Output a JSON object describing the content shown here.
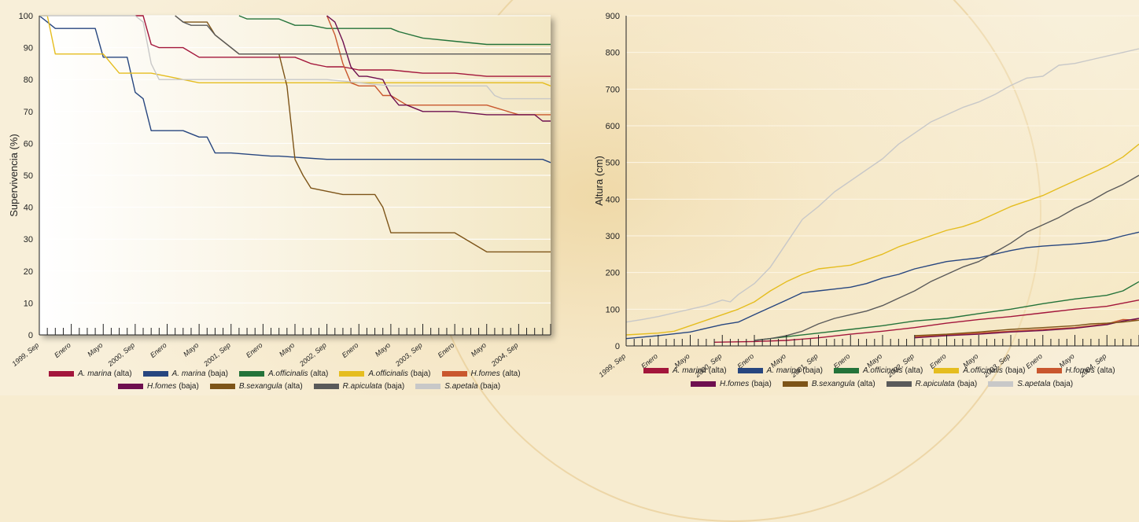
{
  "colors": {
    "A. marina (alta)": "#a3163b",
    "A. marina (baja)": "#27467f",
    "A.officinalis (alta)": "#24733a",
    "A.officinalis (baja)": "#e5bd1f",
    "H.fomes (alta)": "#c9572e",
    "H.fomes (baja)": "#6e0f4f",
    "B.sexangula (alta)": "#7d5418",
    "R.apiculata (baja)": "#5a5a5a",
    "S.apetala (baja)": "#c8c8c8"
  },
  "legend": [
    {
      "name": "A. marina",
      "qual": "(alta)",
      "key": "A. marina (alta)"
    },
    {
      "name": "A. marina",
      "qual": "(baja)",
      "key": "A. marina (baja)"
    },
    {
      "name": "A.officinalis",
      "qual": "(alta)",
      "key": "A.officinalis (alta)"
    },
    {
      "name": "A.officinalis",
      "qual": "(baja)",
      "key": "A.officinalis (baja)"
    },
    {
      "name": "H.fomes",
      "qual": "(alta)",
      "key": "H.fomes (alta)"
    },
    {
      "name": "H.fomes",
      "qual": "(baja)",
      "key": "H.fomes (baja)"
    },
    {
      "name": "B.sexangula",
      "qual": "(alta)",
      "key": "B.sexangula (alta)"
    },
    {
      "name": "R.apiculata",
      "qual": "(baja)",
      "key": "R.apiculata (baja)"
    },
    {
      "name": "S.apetala",
      "qual": "(baja)",
      "key": "S.apetala (baja)"
    }
  ],
  "chart_data": [
    {
      "type": "line",
      "ylabel": "Supervivencia (%)",
      "ylim": [
        0,
        100
      ],
      "yticks": [
        0,
        10,
        20,
        30,
        40,
        50,
        60,
        70,
        80,
        90,
        100
      ],
      "xlim": [
        0,
        64
      ],
      "xticks": [
        {
          "x": 0,
          "label": "1999, Sep"
        },
        {
          "x": 4,
          "label": "Enero"
        },
        {
          "x": 8,
          "label": "Mayo"
        },
        {
          "x": 12,
          "label": "2000, Sep"
        },
        {
          "x": 16,
          "label": "Enero"
        },
        {
          "x": 20,
          "label": "Mayo"
        },
        {
          "x": 24,
          "label": "2001, Sep"
        },
        {
          "x": 28,
          "label": "Enero"
        },
        {
          "x": 32,
          "label": "Mayo"
        },
        {
          "x": 36,
          "label": "2002, Sep"
        },
        {
          "x": 40,
          "label": "Enero"
        },
        {
          "x": 44,
          "label": "Mayo"
        },
        {
          "x": 48,
          "label": "2003, Sep"
        },
        {
          "x": 52,
          "label": "Enero"
        },
        {
          "x": 56,
          "label": "Mayo"
        },
        {
          "x": 60,
          "label": "2004, Sep"
        }
      ],
      "grid": true,
      "legend_position": "bottom",
      "series": [
        {
          "name": "A. marina (alta)",
          "x": [
            12,
            13,
            14,
            15,
            18,
            20,
            32,
            33,
            34,
            36,
            38,
            40,
            44,
            48,
            52,
            56,
            64
          ],
          "y": [
            100,
            100,
            91,
            90,
            90,
            87,
            87,
            86,
            85,
            84,
            84,
            83,
            83,
            82,
            82,
            81,
            81
          ]
        },
        {
          "name": "A. marina (baja)",
          "x": [
            0,
            1,
            2,
            4,
            7,
            8,
            11,
            12,
            13,
            14,
            18,
            20,
            21,
            22,
            24,
            29,
            30,
            36,
            42,
            48,
            54,
            60,
            63,
            64
          ],
          "y": [
            100,
            98,
            96,
            96,
            96,
            87,
            87,
            76,
            74,
            64,
            64,
            62,
            62,
            57,
            57,
            56,
            56,
            55,
            55,
            55,
            55,
            55,
            55,
            54
          ]
        },
        {
          "name": "A.officinalis (alta)",
          "x": [
            25,
            26,
            30,
            32,
            34,
            36,
            40,
            44,
            45,
            48,
            52,
            56,
            60,
            64
          ],
          "y": [
            100,
            99,
            99,
            97,
            97,
            96,
            96,
            96,
            95,
            93,
            92,
            91,
            91,
            91
          ]
        },
        {
          "name": "A.officinalis (baja)",
          "x": [
            0,
            1,
            2,
            8,
            9,
            10,
            14,
            16,
            18,
            20,
            36,
            44,
            52,
            56,
            60,
            63,
            64
          ],
          "y": [
            100,
            100,
            88,
            88,
            85,
            82,
            82,
            81,
            80,
            79,
            79,
            79,
            79,
            79,
            79,
            79,
            78
          ]
        },
        {
          "name": "H.fomes (alta)",
          "x": [
            36,
            37,
            38,
            39,
            40,
            42,
            43,
            44,
            46,
            48,
            52,
            56,
            60,
            64
          ],
          "y": [
            100,
            94,
            85,
            79,
            78,
            78,
            75,
            75,
            72,
            72,
            72,
            72,
            69,
            69
          ]
        },
        {
          "name": "H.fomes (baja)",
          "x": [
            36,
            37,
            38,
            39,
            40,
            41,
            43,
            44,
            45,
            46,
            48,
            52,
            56,
            62,
            63,
            64
          ],
          "y": [
            100,
            98,
            92,
            84,
            81,
            81,
            80,
            75,
            72,
            72,
            70,
            70,
            69,
            69,
            67,
            67
          ]
        },
        {
          "name": "B.sexangula (alta)",
          "x": [
            17,
            18,
            21,
            22,
            25,
            30,
            31,
            32,
            33,
            34,
            36,
            38,
            42,
            43,
            44,
            48,
            52,
            56,
            64
          ],
          "y": [
            100,
            98,
            98,
            94,
            88,
            88,
            78,
            55,
            50,
            46,
            45,
            44,
            44,
            40,
            32,
            32,
            32,
            26,
            26
          ]
        },
        {
          "name": "R.apiculata (baja)",
          "x": [
            17,
            18,
            19,
            21,
            22,
            24,
            25,
            30,
            36,
            44,
            52,
            56,
            64
          ],
          "y": [
            100,
            98,
            97,
            97,
            94,
            90,
            88,
            88,
            88,
            88,
            88,
            88,
            88
          ]
        },
        {
          "name": "S.apetala (baja)",
          "x": [
            0,
            12,
            13,
            14,
            15,
            20,
            28,
            36,
            44,
            52,
            56,
            57,
            58,
            64
          ],
          "y": [
            100,
            100,
            98,
            85,
            80,
            80,
            80,
            80,
            78,
            78,
            78,
            75,
            74,
            74
          ]
        }
      ]
    },
    {
      "type": "line",
      "ylabel": "Altura (cm)",
      "ylim": [
        0,
        900
      ],
      "yticks": [
        0,
        100,
        200,
        300,
        400,
        500,
        600,
        700,
        800,
        900
      ],
      "xlim": [
        0,
        64
      ],
      "xticks": [
        {
          "x": 0,
          "label": "1999, Sep"
        },
        {
          "x": 4,
          "label": "Enero"
        },
        {
          "x": 8,
          "label": "Mayo"
        },
        {
          "x": 12,
          "label": "2000, Sep"
        },
        {
          "x": 16,
          "label": "Enero"
        },
        {
          "x": 20,
          "label": "Mayo"
        },
        {
          "x": 24,
          "label": "2001, Sep"
        },
        {
          "x": 28,
          "label": "Enero"
        },
        {
          "x": 32,
          "label": "Mayo"
        },
        {
          "x": 36,
          "label": "2002, Sep"
        },
        {
          "x": 40,
          "label": "Enero"
        },
        {
          "x": 44,
          "label": "Mayo"
        },
        {
          "x": 48,
          "label": "2003, Sep"
        },
        {
          "x": 52,
          "label": "Enero"
        },
        {
          "x": 56,
          "label": "Mayo"
        },
        {
          "x": 60,
          "label": "2004, Sep"
        }
      ],
      "grid": true,
      "legend_position": "bottom",
      "series": [
        {
          "name": "A. marina (alta)",
          "x": [
            11,
            16,
            20,
            24,
            28,
            32,
            36,
            40,
            44,
            48,
            52,
            56,
            60,
            64
          ],
          "y": [
            10,
            12,
            15,
            22,
            32,
            40,
            50,
            62,
            72,
            80,
            90,
            100,
            108,
            125
          ]
        },
        {
          "name": "A. marina (baja)",
          "x": [
            0,
            4,
            8,
            10,
            12,
            14,
            16,
            18,
            20,
            22,
            24,
            26,
            28,
            30,
            32,
            34,
            36,
            38,
            40,
            42,
            44,
            46,
            48,
            50,
            52,
            54,
            56,
            58,
            60,
            62,
            64
          ],
          "y": [
            20,
            28,
            38,
            48,
            58,
            65,
            85,
            105,
            125,
            145,
            150,
            155,
            160,
            170,
            185,
            195,
            210,
            220,
            230,
            235,
            240,
            250,
            260,
            268,
            272,
            275,
            278,
            282,
            288,
            300,
            310
          ]
        },
        {
          "name": "A.officinalis (alta)",
          "x": [
            16,
            20,
            24,
            28,
            32,
            36,
            40,
            44,
            48,
            52,
            56,
            60,
            62,
            64
          ],
          "y": [
            15,
            25,
            35,
            45,
            55,
            68,
            75,
            88,
            100,
            115,
            128,
            138,
            150,
            175
          ]
        },
        {
          "name": "A.officinalis (baja)",
          "x": [
            0,
            4,
            6,
            8,
            10,
            12,
            14,
            16,
            18,
            20,
            22,
            24,
            26,
            28,
            30,
            32,
            34,
            36,
            38,
            40,
            42,
            44,
            46,
            48,
            50,
            52,
            54,
            56,
            58,
            60,
            62,
            64
          ],
          "y": [
            30,
            35,
            40,
            55,
            70,
            85,
            100,
            120,
            150,
            175,
            195,
            210,
            215,
            220,
            235,
            250,
            270,
            285,
            300,
            315,
            325,
            340,
            360,
            380,
            395,
            410,
            430,
            450,
            470,
            490,
            515,
            550
          ]
        },
        {
          "name": "H.fomes (alta)",
          "x": [
            36,
            40,
            44,
            48,
            52,
            56,
            60,
            62,
            64
          ],
          "y": [
            25,
            30,
            35,
            40,
            45,
            50,
            60,
            72,
            70
          ]
        },
        {
          "name": "H.fomes (baja)",
          "x": [
            36,
            40,
            44,
            48,
            52,
            56,
            60,
            62,
            64
          ],
          "y": [
            22,
            28,
            32,
            38,
            42,
            48,
            58,
            68,
            75
          ]
        },
        {
          "name": "B.sexangula (alta)",
          "x": [
            36,
            40,
            44,
            48,
            52,
            56,
            58,
            60,
            62,
            64
          ],
          "y": [
            28,
            32,
            38,
            45,
            50,
            55,
            60,
            62,
            65,
            70
          ]
        },
        {
          "name": "R.apiculata (baja)",
          "x": [
            16,
            18,
            20,
            22,
            24,
            26,
            28,
            30,
            32,
            34,
            36,
            38,
            40,
            42,
            44,
            46,
            48,
            50,
            52,
            54,
            56,
            58,
            60,
            62,
            64
          ],
          "y": [
            15,
            20,
            28,
            40,
            60,
            75,
            85,
            95,
            110,
            130,
            150,
            175,
            195,
            215,
            230,
            255,
            280,
            310,
            330,
            350,
            375,
            395,
            420,
            440,
            465
          ]
        },
        {
          "name": "S.apetala (baja)",
          "x": [
            0,
            2,
            4,
            6,
            8,
            10,
            12,
            13,
            14,
            16,
            18,
            20,
            22,
            24,
            26,
            28,
            30,
            32,
            34,
            36,
            38,
            40,
            42,
            44,
            46,
            48,
            50,
            52,
            54,
            56,
            58,
            60,
            62,
            64
          ],
          "y": [
            65,
            72,
            80,
            90,
            100,
            110,
            125,
            120,
            140,
            170,
            215,
            280,
            345,
            380,
            420,
            450,
            480,
            510,
            550,
            580,
            610,
            630,
            650,
            665,
            685,
            710,
            730,
            735,
            765,
            770,
            780,
            790,
            800,
            810
          ]
        }
      ]
    }
  ]
}
